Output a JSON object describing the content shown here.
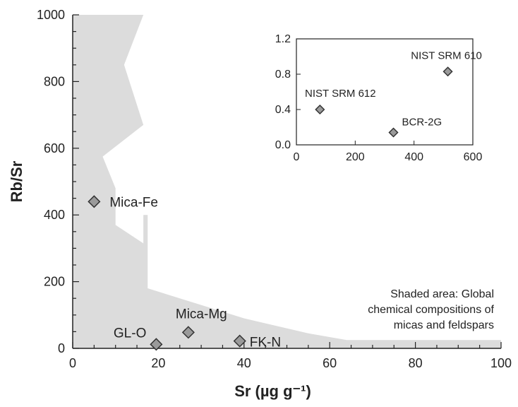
{
  "chart_data": [
    {
      "type": "scatter",
      "xlabel": "Sr (µg g⁻¹)",
      "ylabel": "Rb/Sr",
      "xlim": [
        0,
        100
      ],
      "ylim": [
        0,
        1000
      ],
      "x_ticks": [
        "0",
        "20",
        "40",
        "60",
        "80",
        "100"
      ],
      "y_ticks": [
        "0",
        "200",
        "400",
        "600",
        "800",
        "1000"
      ],
      "points": [
        {
          "label": "Mica-Fe",
          "x": 5,
          "y": 440
        },
        {
          "label": "GL-O",
          "x": 19.5,
          "y": 12
        },
        {
          "label": "Mica-Mg",
          "x": 27,
          "y": 48
        },
        {
          "label": "FK-N",
          "x": 39,
          "y": 22
        }
      ],
      "shaded_area": {
        "label": "Shaded area: Global chemical compositions of micas and feldspars",
        "label_lines": [
          "Shaded area: Global",
          "chemical compositions of",
          "micas and feldspars"
        ],
        "color": "#dcdcdc",
        "outline": [
          [
            0,
            1000
          ],
          [
            16.5,
            1000
          ],
          [
            12,
            850
          ],
          [
            16.5,
            670
          ],
          [
            7,
            575
          ],
          [
            10,
            480
          ],
          [
            10,
            370
          ],
          [
            16.5,
            315
          ],
          [
            16.5,
            400
          ],
          [
            17.5,
            400
          ],
          [
            17.5,
            180
          ],
          [
            25,
            150
          ],
          [
            40,
            90
          ],
          [
            55,
            45
          ],
          [
            64,
            25
          ],
          [
            100,
            25
          ],
          [
            100,
            0
          ],
          [
            0,
            0
          ]
        ]
      },
      "marker_color": "#9a9a9a"
    },
    {
      "type": "scatter",
      "inset": true,
      "xlim": [
        0,
        600
      ],
      "ylim": [
        0,
        1.2
      ],
      "x_ticks": [
        "0",
        "200",
        "400",
        "600"
      ],
      "y_ticks": [
        "0.0",
        "0.4",
        "0.8",
        "1.2"
      ],
      "points": [
        {
          "label": "NIST SRM 610",
          "x": 515,
          "y": 0.83
        },
        {
          "label": "NIST SRM 612",
          "x": 80,
          "y": 0.4
        },
        {
          "label": "BCR-2G",
          "x": 330,
          "y": 0.14
        }
      ]
    }
  ]
}
